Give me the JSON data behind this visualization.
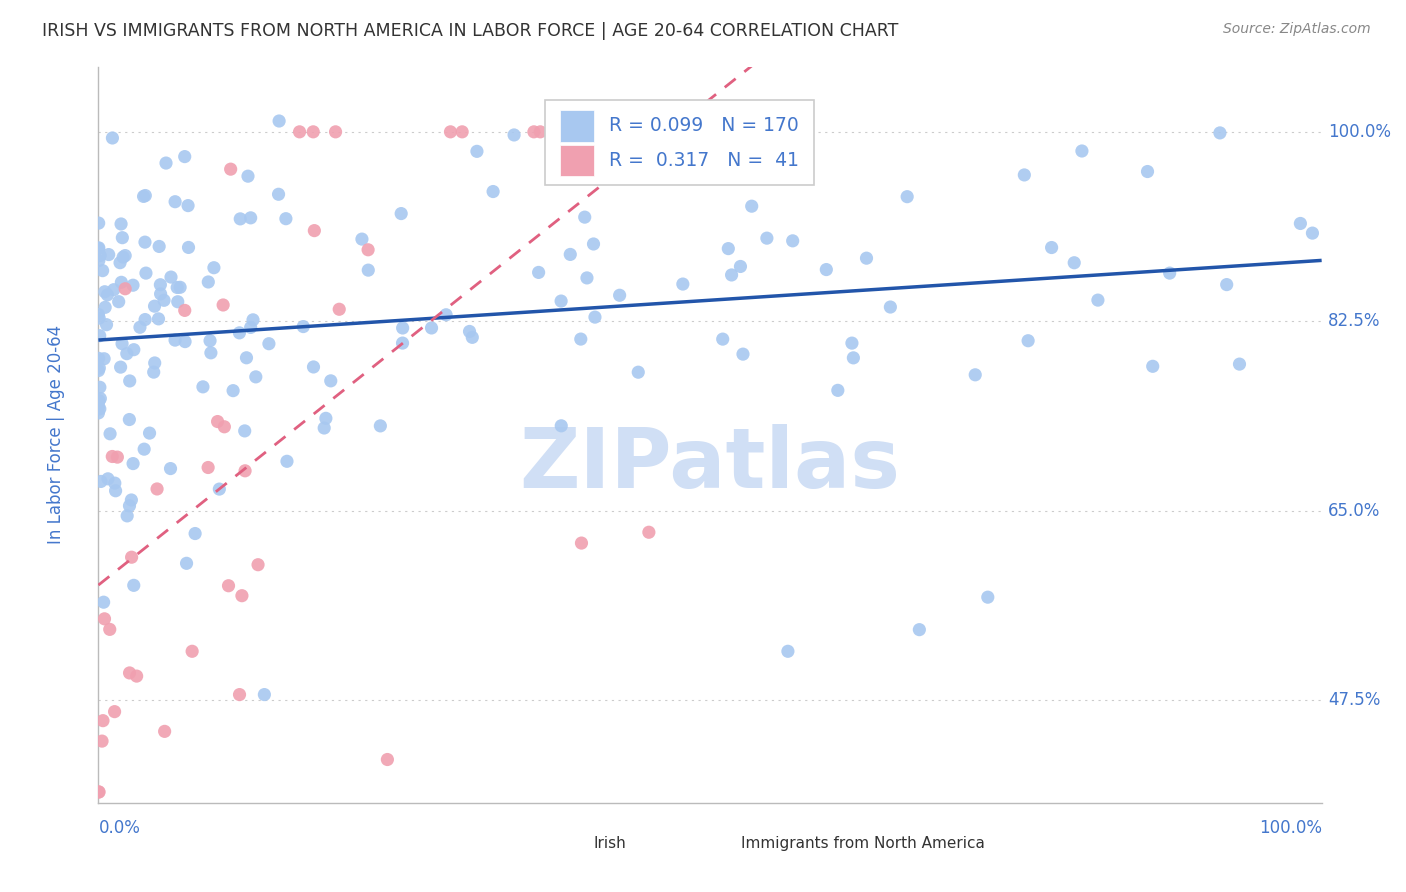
{
  "title": "IRISH VS IMMIGRANTS FROM NORTH AMERICA IN LABOR FORCE | AGE 20-64 CORRELATION CHART",
  "source": "Source: ZipAtlas.com",
  "ylabel": "In Labor Force | Age 20-64",
  "xlim": [
    0.0,
    1.0
  ],
  "ylim": [
    0.38,
    1.06
  ],
  "yticks": [
    0.475,
    0.65,
    0.825,
    1.0
  ],
  "ytick_labels": [
    "47.5%",
    "65.0%",
    "82.5%",
    "100.0%"
  ],
  "R_blue": 0.099,
  "N_blue": 170,
  "R_pink": 0.317,
  "N_pink": 41,
  "blue_scatter_color": "#a8c8f0",
  "pink_scatter_color": "#f0a0b0",
  "blue_line_color": "#2255aa",
  "pink_line_color": "#e06080",
  "title_color": "#333333",
  "source_color": "#888888",
  "axis_label_color": "#4477cc",
  "tick_color": "#4477cc",
  "background_color": "#ffffff",
  "grid_color": "#cccccc",
  "watermark_color": "#d0dff5",
  "legend_border_color": "#cccccc"
}
